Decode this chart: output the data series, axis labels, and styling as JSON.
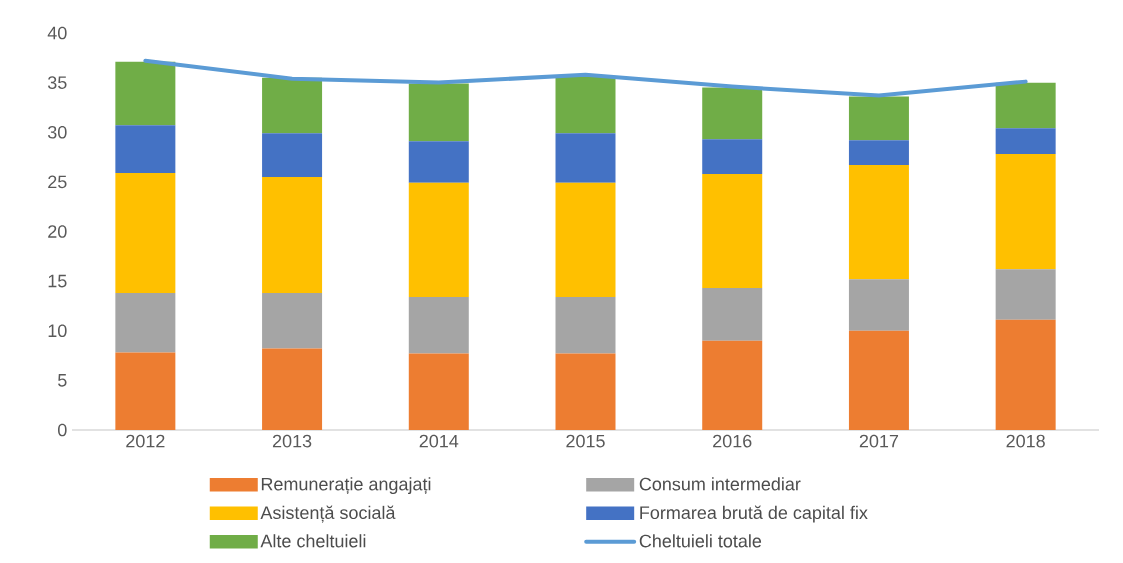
{
  "chart_data": {
    "type": "bar",
    "stacked": true,
    "categories": [
      "2012",
      "2013",
      "2014",
      "2015",
      "2016",
      "2017",
      "2018"
    ],
    "series": [
      {
        "name": "Remunerație angajați",
        "color": "#ed7d31",
        "values": [
          7.8,
          8.2,
          7.7,
          7.7,
          9.0,
          10.0,
          11.1
        ]
      },
      {
        "name": "Consum intermediar",
        "color": "#a5a5a5",
        "values": [
          6.0,
          5.6,
          5.7,
          5.7,
          5.3,
          5.2,
          5.1
        ]
      },
      {
        "name": "Asistență socială",
        "color": "#ffc000",
        "values": [
          12.1,
          11.7,
          11.5,
          11.5,
          11.5,
          11.5,
          11.6
        ]
      },
      {
        "name": "Formarea brută de capital fix",
        "color": "#4472c4",
        "values": [
          4.8,
          4.4,
          4.2,
          5.0,
          3.5,
          2.5,
          2.6
        ]
      },
      {
        "name": "Alte cheltuieli",
        "color": "#70ad47",
        "values": [
          6.4,
          5.6,
          5.8,
          5.7,
          5.2,
          4.4,
          4.6
        ]
      },
      {
        "name": "Cheltuieli totale",
        "type": "line",
        "color": "#5b9bd5",
        "values": [
          37.2,
          35.4,
          35.0,
          35.8,
          34.6,
          33.7,
          35.1
        ]
      }
    ],
    "ylim": [
      0,
      40
    ],
    "yticks": [
      0,
      5,
      10,
      15,
      20,
      25,
      30,
      35,
      40
    ],
    "legend": "bottom",
    "grid": false
  }
}
